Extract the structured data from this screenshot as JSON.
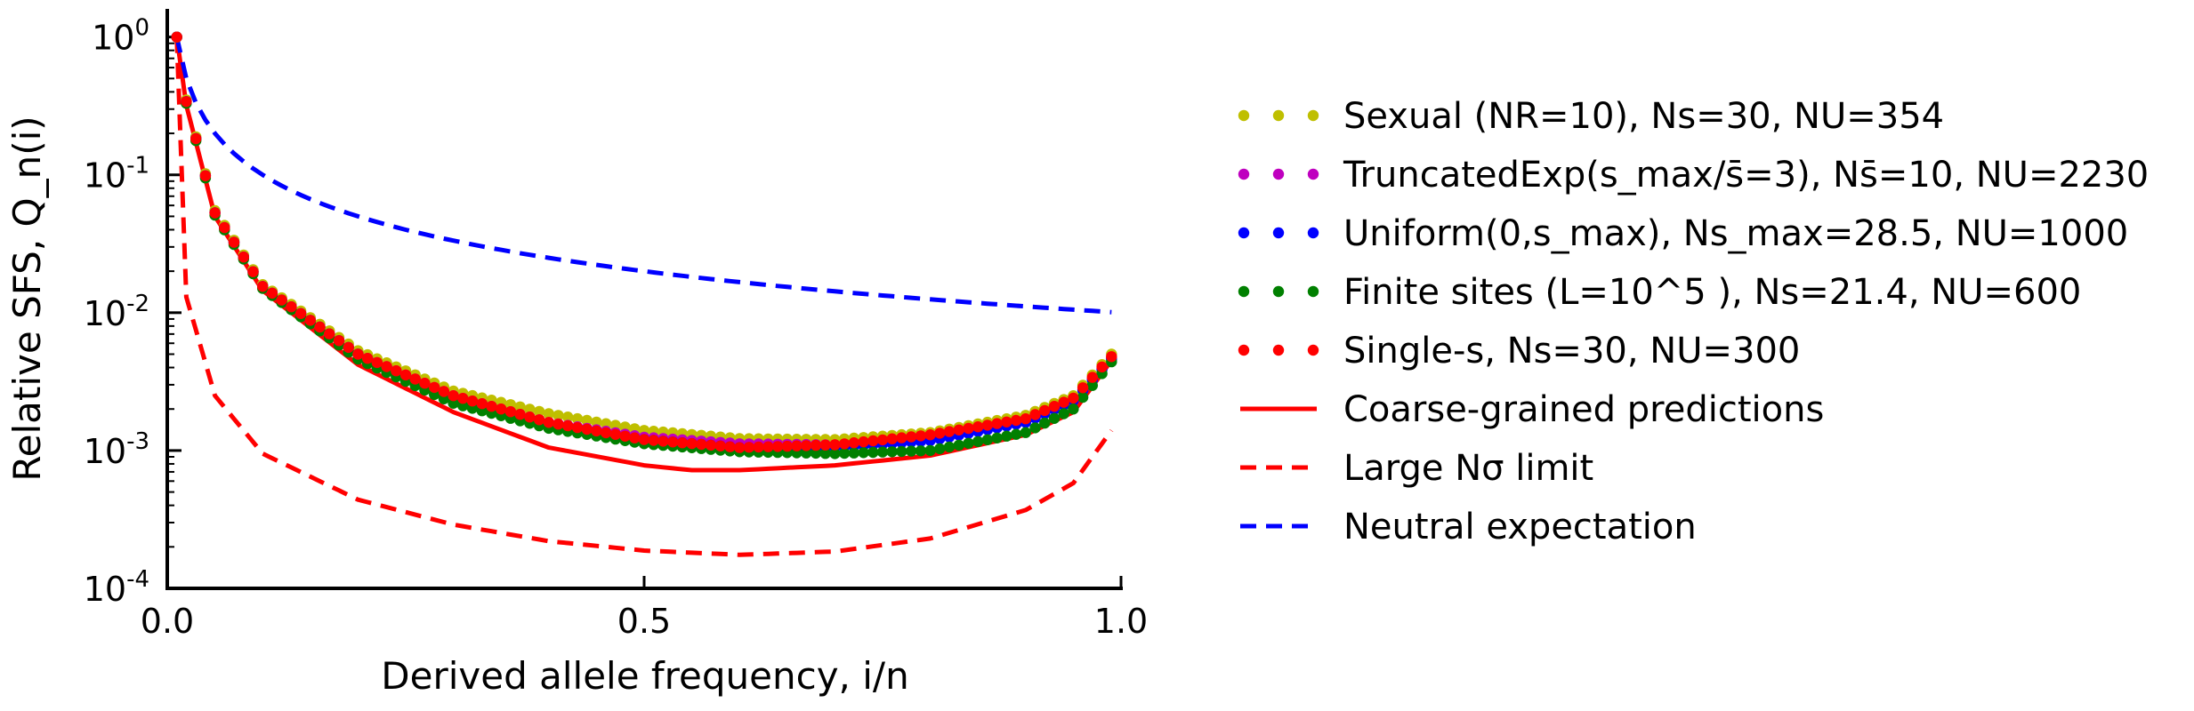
{
  "chart_data": {
    "type": "scatter",
    "xlabel": "Derived allele frequency, i/n",
    "ylabel": "Relative SFS, Q_n(i)",
    "xlim": [
      0.0,
      1.0
    ],
    "ylim": [
      0.0001,
      1.6
    ],
    "yscale": "log",
    "x_ticks": [
      0.0,
      0.5,
      1.0
    ],
    "x_tick_labels": [
      "0.0",
      "0.5",
      "1.0"
    ],
    "y_ticks": [
      1,
      0.1,
      0.01,
      0.001,
      0.0001
    ],
    "y_tick_labels": [
      "10",
      "10",
      "10",
      "10",
      "10"
    ],
    "y_tick_exponents": [
      "0",
      "-1",
      "-2",
      "-3",
      "-4"
    ],
    "grid": false,
    "legend_position": "right",
    "n_points": 99,
    "series": [
      {
        "name": "Sexual (NR=10), Ns=30, NU=354",
        "style": "dots",
        "color": "#bfbf00",
        "anchors": [
          [
            0.01,
            1.0
          ],
          [
            0.02,
            0.35
          ],
          [
            0.05,
            0.055
          ],
          [
            0.1,
            0.016
          ],
          [
            0.2,
            0.0053
          ],
          [
            0.3,
            0.0027
          ],
          [
            0.4,
            0.00185
          ],
          [
            0.5,
            0.0014
          ],
          [
            0.6,
            0.00122
          ],
          [
            0.7,
            0.0012
          ],
          [
            0.8,
            0.00135
          ],
          [
            0.9,
            0.0018
          ],
          [
            0.95,
            0.0025
          ],
          [
            0.99,
            0.005
          ]
        ]
      },
      {
        "name": "TruncatedExp(s_max/s̄=3), Ns̄=10, NU=2230",
        "style": "dots",
        "color": "#bf00bf",
        "anchors": [
          [
            0.01,
            1.0
          ],
          [
            0.02,
            0.34
          ],
          [
            0.05,
            0.053
          ],
          [
            0.1,
            0.0155
          ],
          [
            0.2,
            0.005
          ],
          [
            0.3,
            0.0025
          ],
          [
            0.4,
            0.0016
          ],
          [
            0.5,
            0.00125
          ],
          [
            0.6,
            0.00112
          ],
          [
            0.7,
            0.0011
          ],
          [
            0.8,
            0.00122
          ],
          [
            0.9,
            0.0016
          ],
          [
            0.95,
            0.0023
          ],
          [
            0.99,
            0.0047
          ]
        ]
      },
      {
        "name": "Uniform(0,s_max), Ns_max=28.5, NU=1000",
        "style": "dots",
        "color": "#0000ff",
        "anchors": [
          [
            0.01,
            1.0
          ],
          [
            0.02,
            0.34
          ],
          [
            0.05,
            0.053
          ],
          [
            0.1,
            0.0155
          ],
          [
            0.2,
            0.005
          ],
          [
            0.3,
            0.0024
          ],
          [
            0.4,
            0.00155
          ],
          [
            0.5,
            0.0012
          ],
          [
            0.6,
            0.00105
          ],
          [
            0.7,
            0.00105
          ],
          [
            0.8,
            0.00118
          ],
          [
            0.9,
            0.0016
          ],
          [
            0.95,
            0.0023
          ],
          [
            0.99,
            0.0046
          ]
        ]
      },
      {
        "name": "Finite sites (L=10^5 ), Ns=21.4, NU=600",
        "style": "dots",
        "color": "#008000",
        "anchors": [
          [
            0.01,
            1.0
          ],
          [
            0.02,
            0.33
          ],
          [
            0.05,
            0.051
          ],
          [
            0.1,
            0.015
          ],
          [
            0.2,
            0.0046
          ],
          [
            0.3,
            0.0022
          ],
          [
            0.4,
            0.00145
          ],
          [
            0.5,
            0.00112
          ],
          [
            0.6,
            0.00098
          ],
          [
            0.7,
            0.00095
          ],
          [
            0.8,
            0.001
          ],
          [
            0.9,
            0.00135
          ],
          [
            0.95,
            0.002
          ],
          [
            0.99,
            0.0044
          ]
        ]
      },
      {
        "name": "Single-s, Ns=30, NU=300",
        "style": "dots",
        "color": "#ff0000",
        "anchors": [
          [
            0.01,
            1.0
          ],
          [
            0.02,
            0.34
          ],
          [
            0.05,
            0.053
          ],
          [
            0.1,
            0.0155
          ],
          [
            0.2,
            0.005
          ],
          [
            0.3,
            0.0025
          ],
          [
            0.4,
            0.0016
          ],
          [
            0.5,
            0.0012
          ],
          [
            0.6,
            0.00105
          ],
          [
            0.7,
            0.0011
          ],
          [
            0.8,
            0.0013
          ],
          [
            0.9,
            0.0017
          ],
          [
            0.95,
            0.0024
          ],
          [
            0.99,
            0.0048
          ]
        ]
      },
      {
        "name": "Coarse-grained predictions",
        "style": "solid",
        "color": "#ff0000",
        "anchors": [
          [
            0.01,
            1.0
          ],
          [
            0.02,
            0.32
          ],
          [
            0.05,
            0.05
          ],
          [
            0.1,
            0.0145
          ],
          [
            0.2,
            0.0042
          ],
          [
            0.3,
            0.0019
          ],
          [
            0.4,
            0.00105
          ],
          [
            0.5,
            0.00078
          ],
          [
            0.55,
            0.00072
          ],
          [
            0.6,
            0.00072
          ],
          [
            0.7,
            0.00078
          ],
          [
            0.8,
            0.00092
          ],
          [
            0.9,
            0.0013
          ],
          [
            0.95,
            0.0019
          ],
          [
            0.99,
            0.0045
          ]
        ]
      },
      {
        "name": "Large Nσ limit",
        "style": "dashed",
        "color": "#ff0000",
        "anchors": [
          [
            0.01,
            1.0
          ],
          [
            0.015,
            0.04
          ],
          [
            0.02,
            0.013
          ],
          [
            0.05,
            0.0025
          ],
          [
            0.1,
            0.00095
          ],
          [
            0.2,
            0.00044
          ],
          [
            0.3,
            0.00029
          ],
          [
            0.4,
            0.00022
          ],
          [
            0.5,
            0.000188
          ],
          [
            0.6,
            0.000175
          ],
          [
            0.7,
            0.000185
          ],
          [
            0.8,
            0.00023
          ],
          [
            0.9,
            0.00037
          ],
          [
            0.95,
            0.00058
          ],
          [
            0.99,
            0.0014
          ]
        ]
      },
      {
        "name": "Neutral expectation",
        "style": "dashed",
        "color": "#0000ff",
        "function": "neutral"
      }
    ]
  }
}
